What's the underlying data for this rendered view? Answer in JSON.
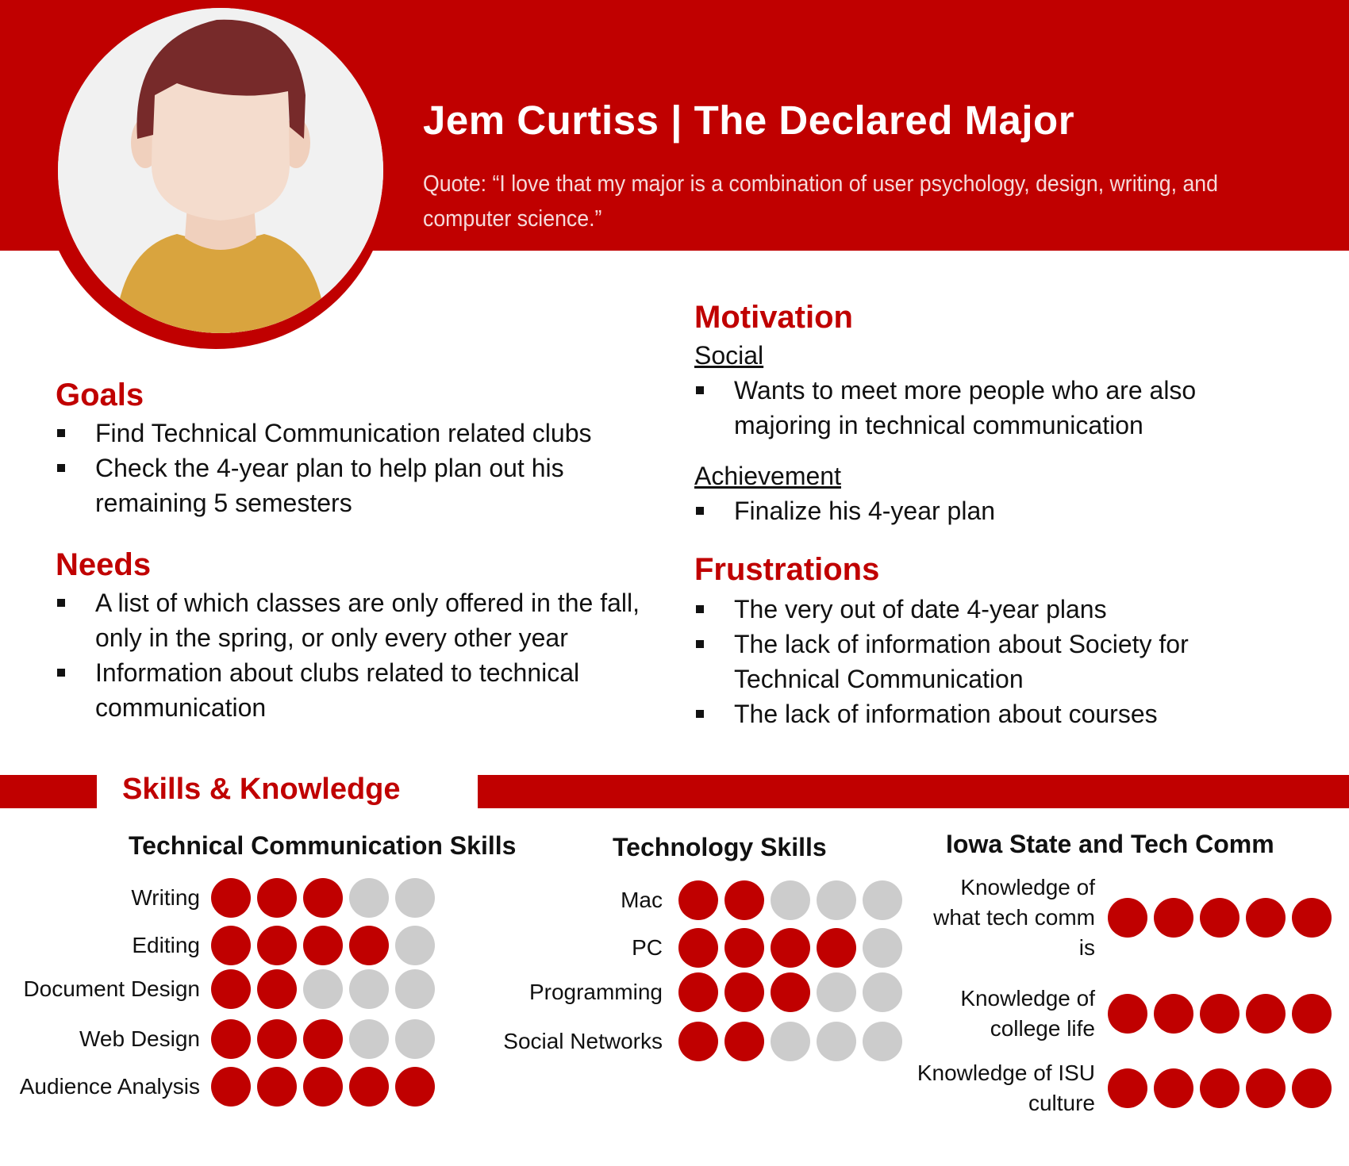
{
  "persona": {
    "title": "Jem Curtiss | The Declared Major",
    "quote": "Quote: “I love that my major is a combination of user psychology, design, writing, and computer science.”"
  },
  "goals": {
    "heading": "Goals",
    "items": [
      "Find Technical Communication related clubs",
      "Check the 4-year plan to help plan out his remaining 5 semesters"
    ]
  },
  "needs": {
    "heading": "Needs",
    "items": [
      "A list of which classes are only offered in the fall, only in the spring, or only every other year",
      "Information about clubs related to technical communication"
    ]
  },
  "motivation": {
    "heading": "Motivation",
    "social_label": "Social",
    "social_items": [
      "Wants to meet more people who are also majoring in technical communication"
    ],
    "achievement_label": "Achievement",
    "achievement_items": [
      "Finalize his 4-year plan"
    ]
  },
  "frustrations": {
    "heading": "Frustrations",
    "items": [
      "The very out of date 4-year plans",
      "The lack of information about Society for Technical Communication",
      "The lack of information about courses"
    ]
  },
  "skills": {
    "heading": "Skills & Knowledge",
    "max": 5,
    "colors": {
      "filled": "#c00000",
      "empty": "#cccccc"
    },
    "groups": [
      {
        "heading": "Technical Communication Skills",
        "rows": [
          {
            "label": "Writing",
            "level": 3
          },
          {
            "label": "Editing",
            "level": 4
          },
          {
            "label": "Document Design",
            "level": 2
          },
          {
            "label": "Web Design",
            "level": 3
          },
          {
            "label": "Audience Analysis",
            "level": 5
          }
        ]
      },
      {
        "heading": "Technology Skills",
        "rows": [
          {
            "label": "Mac",
            "level": 2
          },
          {
            "label": "PC",
            "level": 4
          },
          {
            "label": "Programming",
            "level": 3
          },
          {
            "label": "Social Networks",
            "level": 2
          }
        ]
      },
      {
        "heading": "Iowa State and Tech Comm",
        "rows": [
          {
            "label": "Knowledge of what tech comm is",
            "level": 5
          },
          {
            "label": "Knowledge of college life",
            "level": 5
          },
          {
            "label": "Knowledge of ISU culture",
            "level": 5
          }
        ]
      }
    ]
  }
}
